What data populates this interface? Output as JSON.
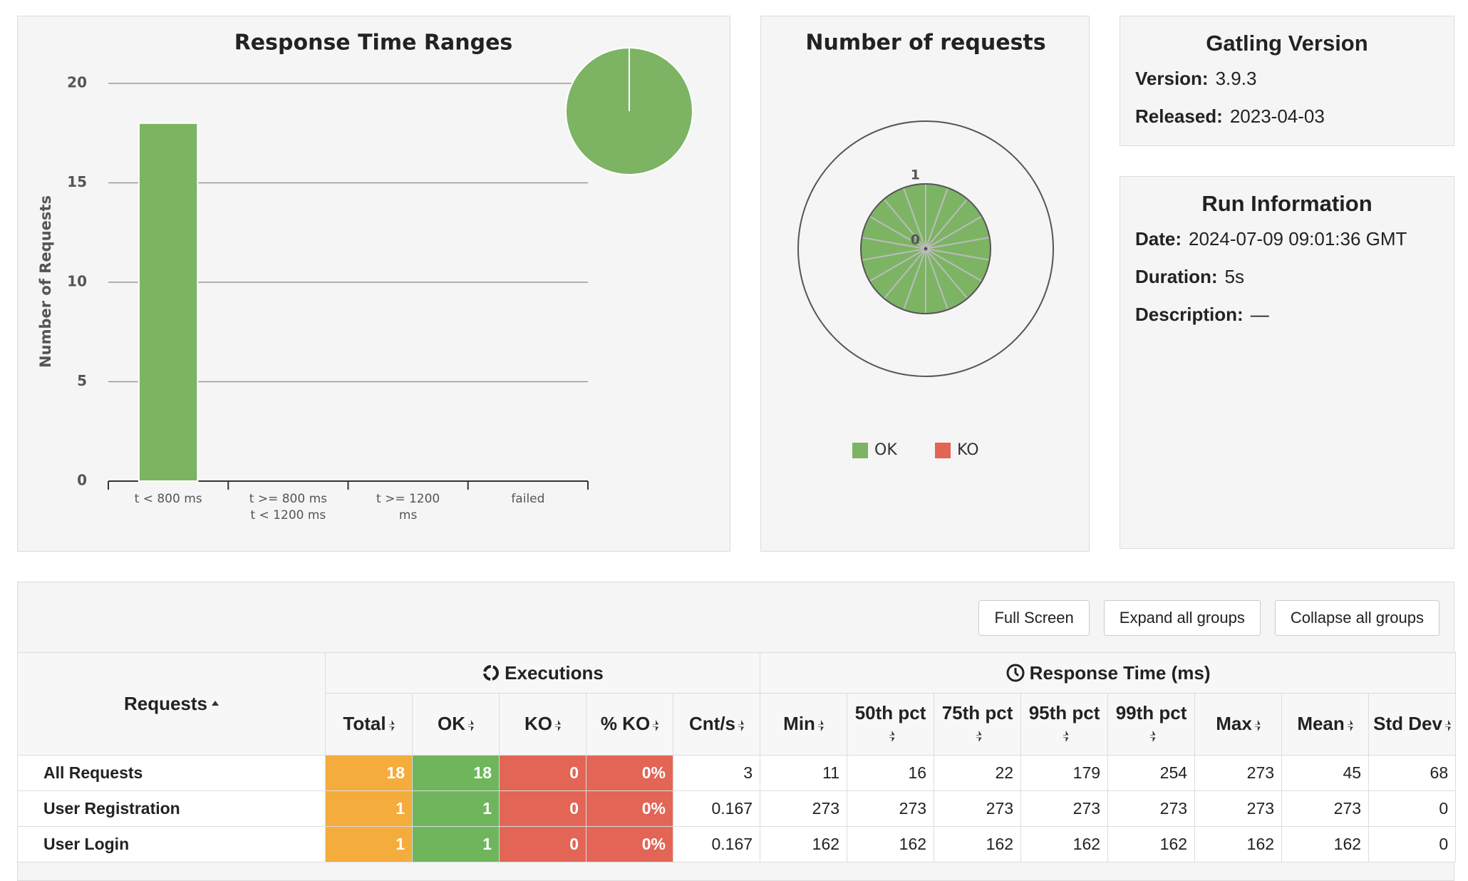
{
  "chart_data": [
    {
      "type": "bar",
      "title": "Response Time Ranges",
      "y_label": "Number of Requests",
      "categories": [
        "t < 800 ms",
        "t >= 800 ms t < 1200 ms",
        "t >= 1200 ms",
        "failed"
      ],
      "values": [
        18,
        0,
        0,
        0
      ],
      "color": "#7cb463",
      "ylim": [
        0,
        20
      ],
      "yticks": [
        0,
        5,
        10,
        15,
        20
      ],
      "grid": true,
      "pie": true
    },
    {
      "type": "polar",
      "title": "Number of requests",
      "categories": [
        null,
        null,
        null,
        null,
        null,
        null,
        null,
        null,
        null,
        null,
        null,
        null,
        null,
        null,
        null,
        null,
        null,
        null
      ],
      "series": [
        {
          "name": "OK",
          "color": "#7cb463",
          "values": [
            1,
            1,
            1,
            1,
            1,
            1,
            1,
            1,
            1,
            1,
            1,
            1,
            1,
            1,
            1,
            1,
            1,
            1
          ]
        },
        {
          "name": "KO",
          "color": "#e26555",
          "values": [
            0,
            0,
            0,
            0,
            0,
            0,
            0,
            0,
            0,
            0,
            0,
            0,
            0,
            0,
            0,
            0,
            0,
            0
          ]
        }
      ],
      "ylim": [
        0,
        1
      ],
      "yticks": [
        0,
        1
      ],
      "legend": "bottom"
    }
  ],
  "gatling_version": {
    "title": "Gatling Version",
    "fields": [
      {
        "label": "Version:",
        "value": "3.9.3"
      },
      {
        "label": "Released:",
        "value": "2023-04-03"
      }
    ]
  },
  "run_information": {
    "title": "Run Information",
    "fields": [
      {
        "label": "Date:",
        "value": "2024-07-09 09:01:36 GMT"
      },
      {
        "label": "Duration:",
        "value": "5s"
      },
      {
        "label": "Description:",
        "value": "—"
      }
    ]
  },
  "buttons": [
    "Full Screen",
    "Expand all groups",
    "Collapse all groups"
  ],
  "table": {
    "groups": [
      "Executions",
      "Response Time (ms)"
    ],
    "columns": [
      "Requests",
      "Total",
      "OK",
      "KO",
      "% KO",
      "Cnt/s",
      "Min",
      "50th pct",
      "75th pct",
      "95th pct",
      "99th pct",
      "Max",
      "Mean",
      "Std Dev"
    ],
    "rows": [
      [
        "All Requests",
        18,
        18,
        0,
        "0%",
        3,
        11,
        16,
        22,
        179,
        254,
        273,
        45,
        68
      ],
      [
        "User Registration",
        1,
        1,
        0,
        "0%",
        0.167,
        273,
        273,
        273,
        273,
        273,
        273,
        273,
        0
      ],
      [
        "User Login",
        1,
        1,
        0,
        "0%",
        0.167,
        162,
        162,
        162,
        162,
        162,
        162,
        162,
        0
      ]
    ]
  }
}
